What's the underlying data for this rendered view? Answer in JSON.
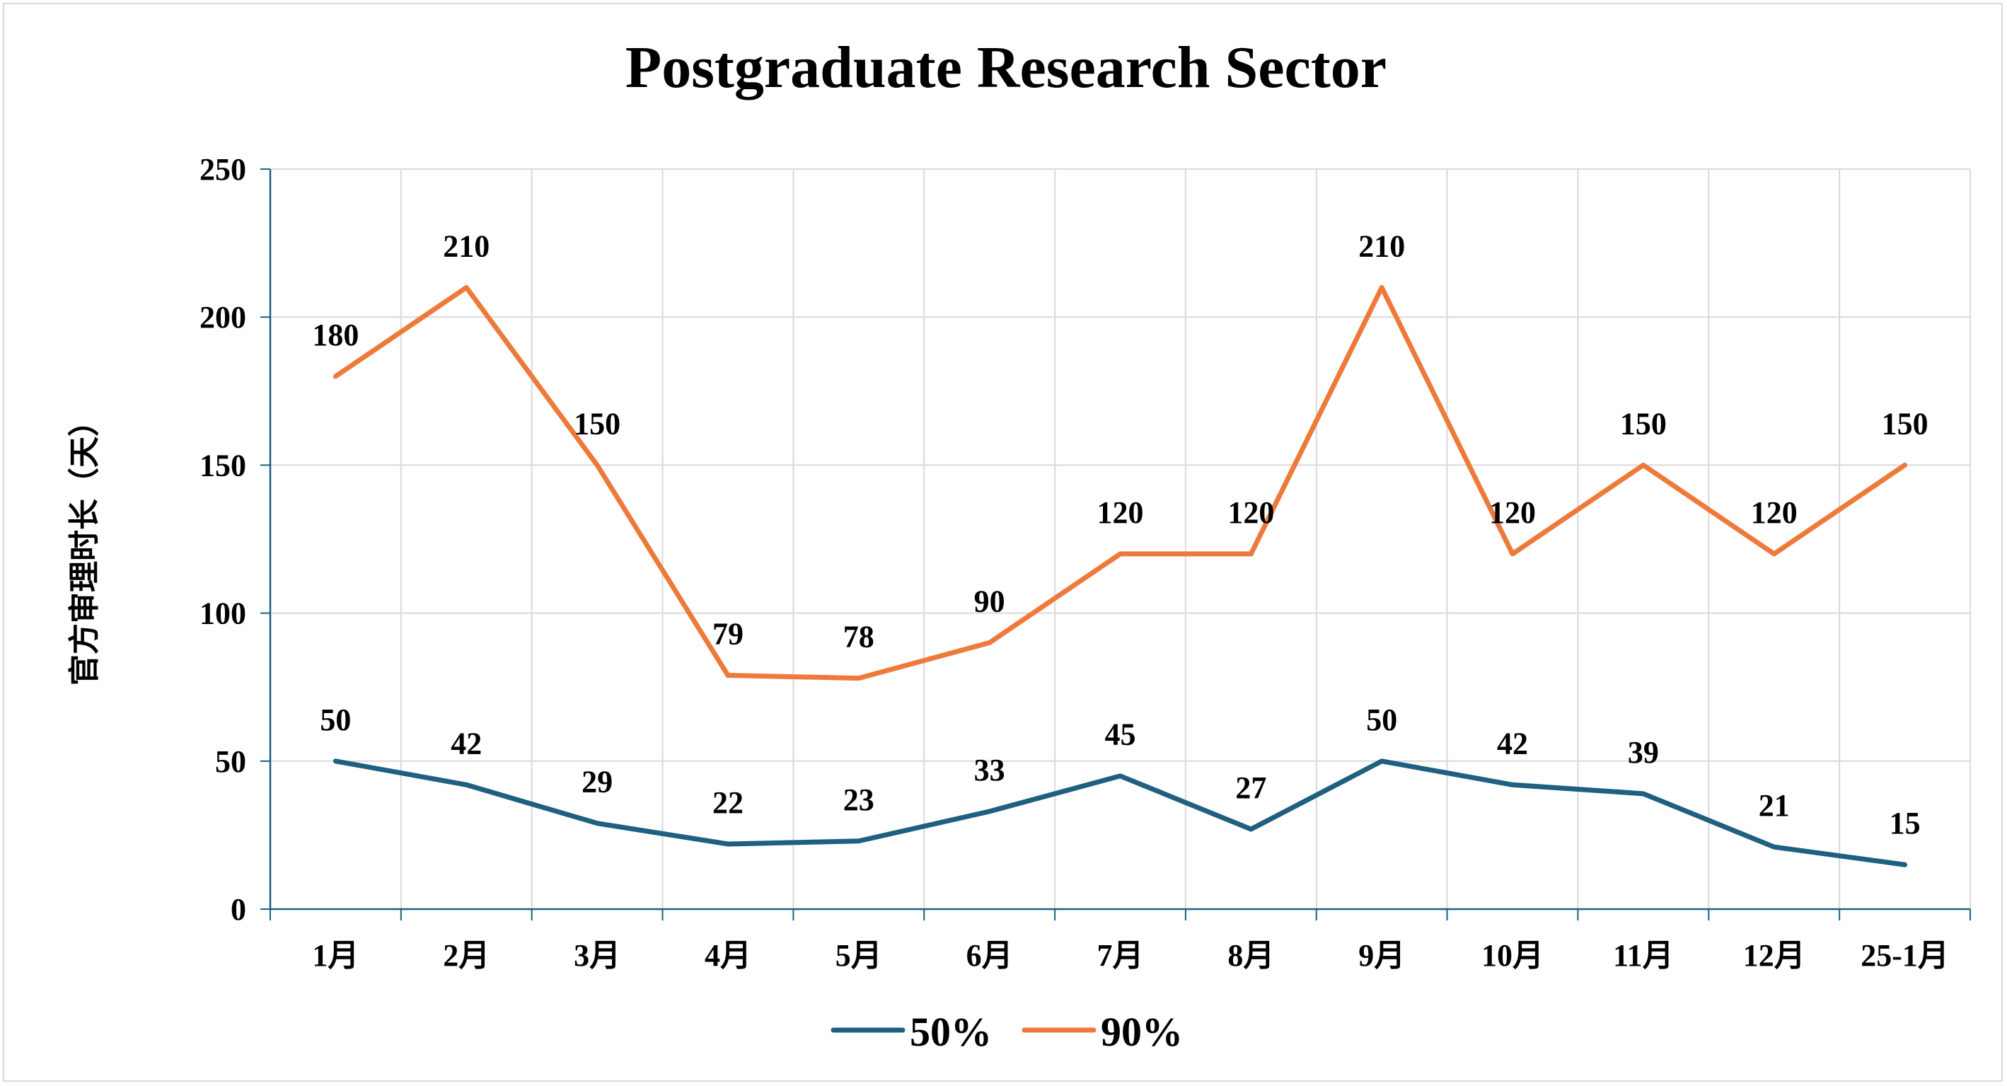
{
  "chart_data": {
    "type": "line",
    "title": "Postgraduate Research Sector",
    "xlabel": "",
    "ylabel": "官方审理时长（天）",
    "categories": [
      "1月",
      "2月",
      "3月",
      "4月",
      "5月",
      "6月",
      "7月",
      "8月",
      "9月",
      "10月",
      "11月",
      "12月",
      "25-1月"
    ],
    "ylim": [
      0,
      250
    ],
    "yticks": [
      0,
      50,
      100,
      150,
      200,
      250
    ],
    "grid": true,
    "legend_position": "bottom",
    "series": [
      {
        "name": "50%",
        "color": "#1f5f7f",
        "values": [
          50,
          42,
          29,
          22,
          23,
          33,
          45,
          27,
          50,
          42,
          39,
          21,
          15
        ]
      },
      {
        "name": "90%",
        "color": "#ed7a3a",
        "values": [
          180,
          210,
          150,
          79,
          78,
          90,
          120,
          120,
          210,
          120,
          150,
          120,
          150
        ]
      }
    ],
    "colors": {
      "gridline": "#d9d9d9",
      "axis": "#1f5f7f",
      "frame": "#d9d9d9"
    }
  }
}
